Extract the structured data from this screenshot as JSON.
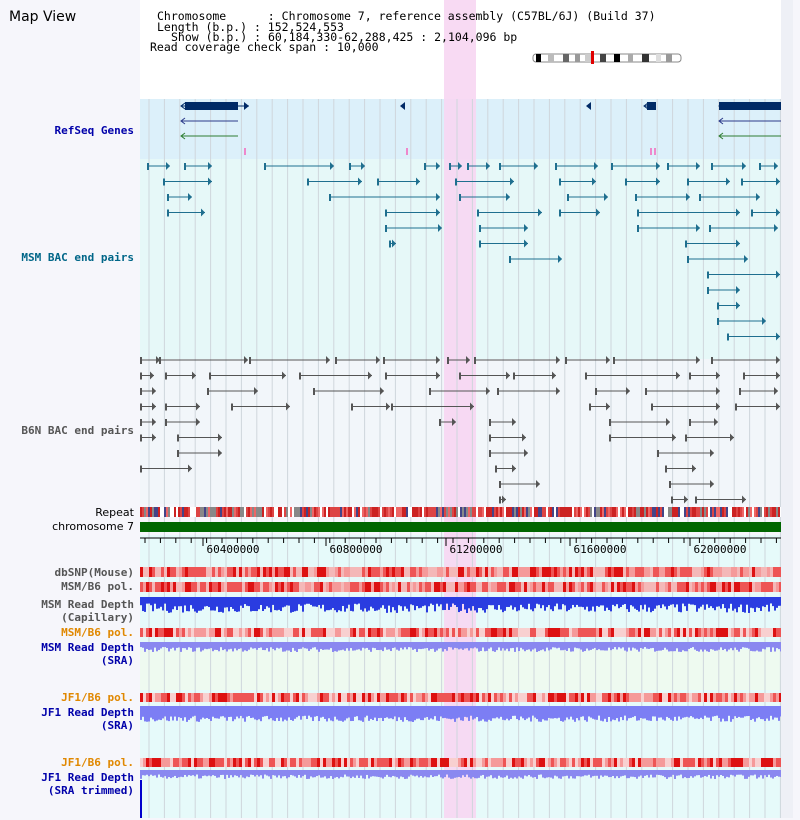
{
  "view_title": "Map View",
  "header": {
    "chromosome_label": "Chromosome",
    "chromosome_value": "Chromosome 7, reference assembly (C57BL/6J) (Build 37)",
    "length_label": "Length (b.p.)",
    "length_value": "152,524,553",
    "show_label": "Show (b.p.)",
    "show_value": "60,184,330-62,288,425 : 2,104,096 bp",
    "coverage_label": "Read coverage check span",
    "coverage_value": "10,000"
  },
  "tracks": {
    "refseq": "RefSeq Genes",
    "msm_bac": "MSM BAC end pairs",
    "b6n_bac": "B6N BAC end pairs",
    "repeat": "Repeat",
    "chromosome": "chromosome 7",
    "dbsnp": "dbSNP(Mouse)",
    "msm_b6_pol_1": "MSM/B6 pol.",
    "msm_depth_cap": "MSM Read Depth\n(Capillary)",
    "msm_b6_pol_2": "MSM/B6 pol.",
    "msm_depth_sra": "MSM Read Depth\n(SRA)",
    "jf1_b6_pol_1": "JF1/B6 pol.",
    "jf1_depth_sra": "JF1 Read Depth\n(SRA)",
    "jf1_b6_pol_2": "JF1/B6 pol.",
    "jf1_depth_trim": "JF1 Read Depth\n(SRA trimmed)"
  },
  "axis": {
    "ticks": [
      "60400000",
      "60800000",
      "61200000",
      "61600000",
      "62000000"
    ]
  },
  "colors": {
    "refseq_label": "#0000aa",
    "msm_label": "#006688",
    "b6n_label": "#555555",
    "orange_label": "#e08800",
    "blue_label": "#0000aa",
    "highlight": "#f7d6f2",
    "chromosome_bar": "#006600",
    "gene_fill": "#002a66"
  }
}
